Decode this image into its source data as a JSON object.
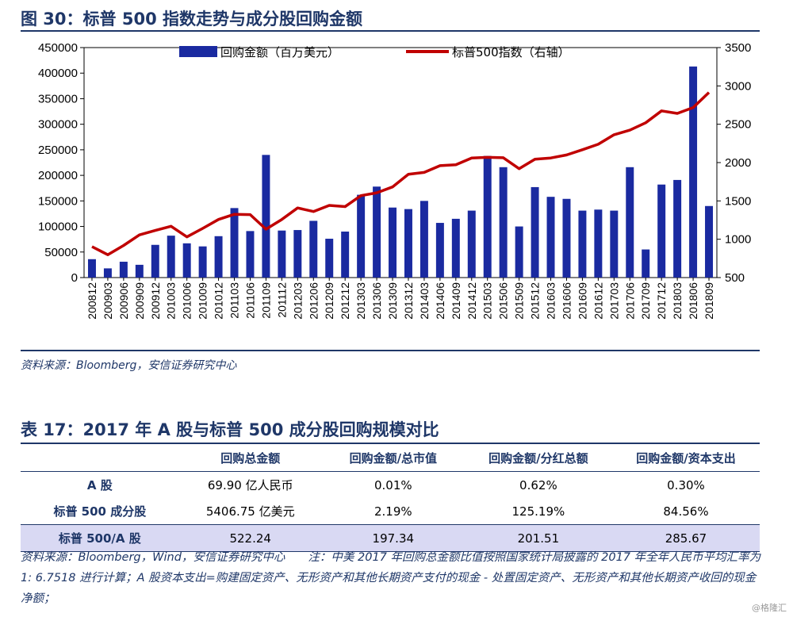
{
  "figure": {
    "title": "图 30：标普 500 指数走势与成分股回购金额",
    "source": "资料来源：Bloomberg，安信证券研究中心"
  },
  "chart_data": {
    "type": "bar+line",
    "categories": [
      "200812",
      "200903",
      "200906",
      "200909",
      "200912",
      "201003",
      "201006",
      "201009",
      "201012",
      "201103",
      "201106",
      "201109",
      "201112",
      "201203",
      "201206",
      "201209",
      "201212",
      "201303",
      "201306",
      "201309",
      "201312",
      "201403",
      "201406",
      "201409",
      "201412",
      "201503",
      "201506",
      "201509",
      "201512",
      "201603",
      "201606",
      "201609",
      "201612",
      "201703",
      "201706",
      "201709",
      "201712",
      "201803",
      "201806",
      "201809"
    ],
    "series": [
      {
        "name": "回购金额（百万美元）",
        "type": "bar",
        "axis": "left",
        "color": "#1a2aa0",
        "values": [
          36000,
          18000,
          31000,
          25000,
          64000,
          82000,
          67000,
          61000,
          81000,
          136000,
          91000,
          240000,
          92000,
          93000,
          111000,
          76000,
          90000,
          162000,
          178000,
          137000,
          134000,
          150000,
          107000,
          115000,
          131000,
          238000,
          216000,
          100000,
          177000,
          158000,
          154000,
          131000,
          133000,
          131000,
          216000,
          55000,
          182000,
          191000,
          413000,
          140000
        ]
      },
      {
        "name": "标普500指数（右轴）",
        "type": "line",
        "axis": "right",
        "color": "#c00000",
        "values": [
          903,
          798,
          919,
          1057,
          1115,
          1169,
          1031,
          1141,
          1258,
          1326,
          1321,
          1131,
          1258,
          1408,
          1362,
          1441,
          1426,
          1569,
          1606,
          1682,
          1848,
          1872,
          1960,
          1972,
          2059,
          2068,
          2063,
          1920,
          2044,
          2060,
          2099,
          2168,
          2239,
          2363,
          2423,
          2519,
          2674,
          2641,
          2718,
          2914
        ]
      }
    ],
    "y_left": {
      "min": 0,
      "max": 450000,
      "ticks": [
        0,
        50000,
        100000,
        150000,
        200000,
        250000,
        300000,
        350000,
        400000,
        450000
      ]
    },
    "y_right": {
      "min": 500,
      "max": 3500,
      "ticks": [
        500,
        1000,
        1500,
        2000,
        2500,
        3000,
        3500
      ]
    },
    "legend_position": "top-center",
    "grid": false
  },
  "table": {
    "title": "表 17：2017 年 A 股与标普 500 成分股回购规模对比",
    "headers": [
      "",
      "回购总金额",
      "回购金额/总市值",
      "回购金额/分红总额",
      "回购金额/资本支出"
    ],
    "rows": [
      [
        "A 股",
        "69.90 亿人民币",
        "0.01%",
        "0.62%",
        "0.30%"
      ],
      [
        "标普 500 成分股",
        "5406.75 亿美元",
        "2.19%",
        "125.19%",
        "84.56%"
      ],
      [
        "标普 500/A 股",
        "522.24",
        "197.34",
        "201.51",
        "285.67"
      ]
    ],
    "note": "资料来源：Bloomberg，Wind，安信证券研究中心　　注：中美 2017 年回购总金额比值按照国家统计局披露的 2017 年全年人民币平均汇率为 1: 6.7518 进行计算；A 股资本支出=购建固定资产、无形资产和其他长期资产支付的现金 - 处置固定资产、无形资产和其他长期资产收回的现金净额；"
  },
  "watermark": "@格隆汇"
}
